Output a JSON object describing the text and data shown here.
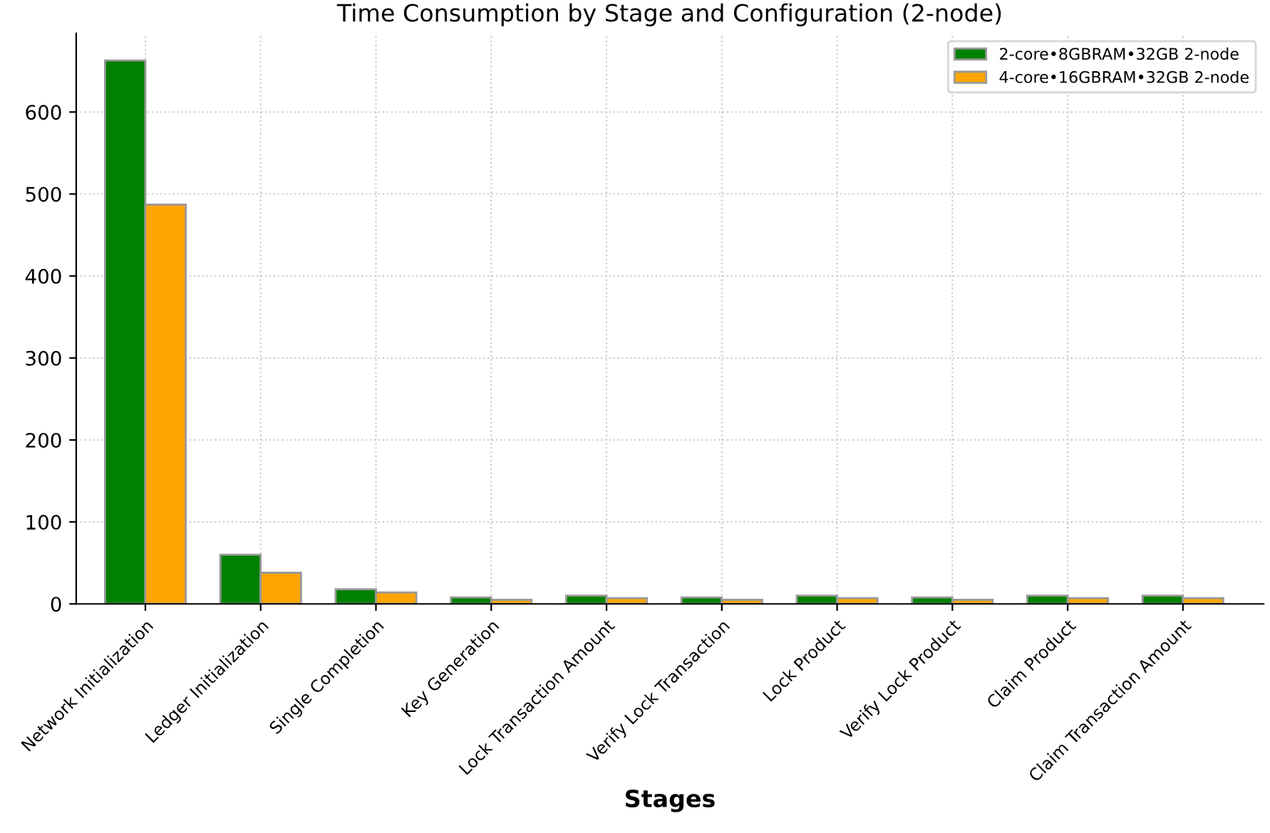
{
  "chart_data": {
    "type": "bar",
    "title": "Time Consumption by Stage and Configuration (2-node)",
    "xlabel": "Stages",
    "categories": [
      "Network Initialization",
      "Ledger Initialization",
      "Single Completion",
      "Key Generation",
      "Lock Transaction Amount",
      "Verify Lock Transaction",
      "Lock Product",
      "Verify Lock Product",
      "Claim Product",
      "Claim Transaction Amount"
    ],
    "series": [
      {
        "name": "2-core•8GBRAM•32GB 2-node",
        "color": "#008000",
        "values": [
          663,
          60,
          18,
          8,
          10,
          8,
          10,
          8,
          10,
          10
        ]
      },
      {
        "name": "4-core•16GBRAM•32GB 2-node",
        "color": "#ffa500",
        "values": [
          487,
          38,
          14,
          5,
          7,
          5,
          7,
          5,
          7,
          7
        ]
      }
    ],
    "ylim": [
      0,
      696
    ],
    "yticks": [
      0,
      100,
      200,
      300,
      400,
      500,
      600
    ],
    "grid": true,
    "legend": "top right"
  }
}
